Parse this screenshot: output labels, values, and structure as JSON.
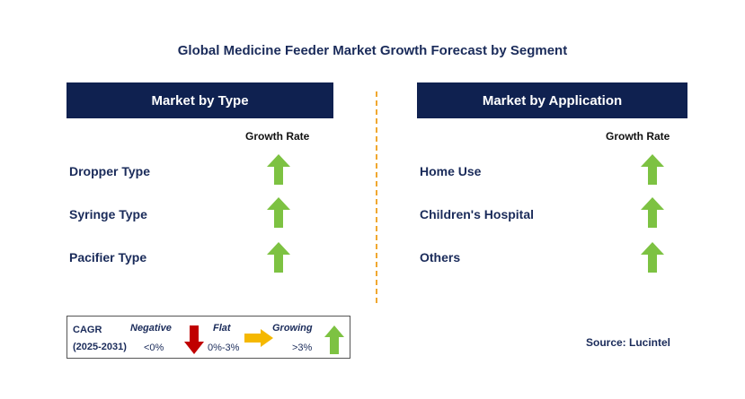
{
  "title": "Global Medicine Feeder Market Growth Forecast by Segment",
  "left_panel": {
    "header": "Market by Type",
    "growth_label": "Growth Rate",
    "segments": [
      {
        "label": "Dropper Type",
        "trend": "growing"
      },
      {
        "label": "Syringe Type",
        "trend": "growing"
      },
      {
        "label": "Pacifier Type",
        "trend": "growing"
      }
    ]
  },
  "right_panel": {
    "header": "Market by Application",
    "growth_label": "Growth Rate",
    "segments": [
      {
        "label": "Home Use",
        "trend": "growing"
      },
      {
        "label": "Children's Hospital",
        "trend": "growing"
      },
      {
        "label": "Others",
        "trend": "growing"
      }
    ]
  },
  "legend": {
    "cagr": "CAGR",
    "period": "(2025-2031)",
    "negative_label": "Negative",
    "negative_range": "<0%",
    "flat_label": "Flat",
    "flat_range": "0%-3%",
    "growing_label": "Growing",
    "growing_range": ">3%"
  },
  "source": "Source: Lucintel",
  "colors": {
    "header_bg": "#0f2150",
    "growing_arrow": "#7dc242",
    "negative_arrow": "#c00000",
    "flat_arrow": "#f5b800",
    "divider": "#f0a830"
  },
  "icons": {
    "growing": "up-arrow-icon",
    "negative": "down-arrow-icon",
    "flat": "right-arrow-icon"
  }
}
